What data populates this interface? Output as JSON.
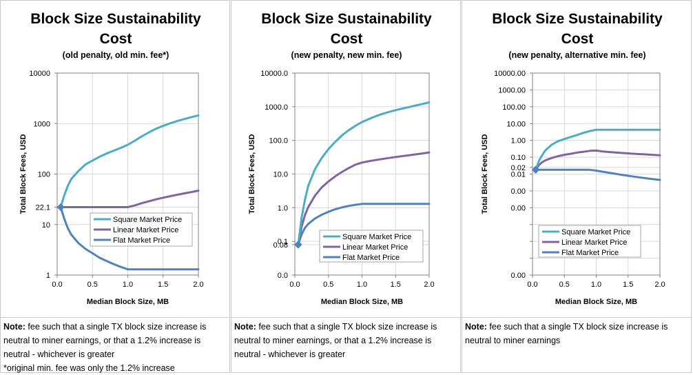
{
  "colors": {
    "square": "#4BACC6",
    "linear": "#8064A2",
    "flat": "#4F81BD",
    "grid": "#d9d9d9",
    "axis": "#808080"
  },
  "chart_data": [
    {
      "type": "line",
      "title_lines": [
        "Block Size Sustainability",
        "Cost"
      ],
      "subtitle": "(old penalty, old min. fee*)",
      "xlabel": "Median Block Size, MB",
      "ylabel": "Total Block Fees, USD",
      "yscale": "log",
      "xlim": [
        0,
        2.0
      ],
      "ylim": [
        1,
        10000
      ],
      "x_ticks": [
        "0.0",
        "0.5",
        "1.0",
        "1.5",
        "2.0"
      ],
      "y_ticks": [
        {
          "value": 10000,
          "label": "10000"
        },
        {
          "value": 1000,
          "label": "1000"
        },
        {
          "value": 100,
          "label": "100"
        },
        {
          "value": 22.1,
          "label": "22.1"
        },
        {
          "value": 10,
          "label": "10"
        },
        {
          "value": 1,
          "label": "1"
        }
      ],
      "legend_position": "lower-right",
      "start_marker": {
        "x": 0.05,
        "y": 22.1
      },
      "series": [
        {
          "name": "Square Market Price",
          "color_key": "square",
          "points": [
            [
              0.05,
              22.1
            ],
            [
              0.1,
              38
            ],
            [
              0.15,
              58
            ],
            [
              0.2,
              80
            ],
            [
              0.3,
              115
            ],
            [
              0.4,
              155
            ],
            [
              0.5,
              185
            ],
            [
              0.6,
              220
            ],
            [
              0.7,
              255
            ],
            [
              0.8,
              290
            ],
            [
              0.9,
              330
            ],
            [
              1.0,
              380
            ],
            [
              1.1,
              460
            ],
            [
              1.2,
              560
            ],
            [
              1.3,
              670
            ],
            [
              1.4,
              790
            ],
            [
              1.5,
              900
            ],
            [
              1.6,
              1010
            ],
            [
              1.7,
              1120
            ],
            [
              1.8,
              1230
            ],
            [
              1.9,
              1340
            ],
            [
              2.0,
              1450
            ]
          ]
        },
        {
          "name": "Linear Market Price",
          "color_key": "linear",
          "points": [
            [
              0.05,
              22.1
            ],
            [
              0.3,
              22.1
            ],
            [
              0.6,
              22.1
            ],
            [
              1.0,
              22.1
            ],
            [
              1.1,
              24
            ],
            [
              1.2,
              26.5
            ],
            [
              1.3,
              29
            ],
            [
              1.4,
              31.5
            ],
            [
              1.5,
              34
            ],
            [
              1.6,
              36.5
            ],
            [
              1.7,
              39
            ],
            [
              1.8,
              41.5
            ],
            [
              1.9,
              44
            ],
            [
              2.0,
              47
            ]
          ]
        },
        {
          "name": "Flat Market Price",
          "color_key": "flat",
          "points": [
            [
              0.05,
              22.1
            ],
            [
              0.1,
              13
            ],
            [
              0.15,
              8.5
            ],
            [
              0.2,
              6.3
            ],
            [
              0.3,
              4.3
            ],
            [
              0.4,
              3.3
            ],
            [
              0.5,
              2.7
            ],
            [
              0.6,
              2.2
            ],
            [
              0.7,
              1.9
            ],
            [
              0.8,
              1.65
            ],
            [
              0.9,
              1.45
            ],
            [
              1.0,
              1.3
            ],
            [
              1.1,
              1.3
            ],
            [
              1.5,
              1.3
            ],
            [
              2.0,
              1.3
            ]
          ]
        }
      ]
    },
    {
      "type": "line",
      "title_lines": [
        "Block Size Sustainability",
        "Cost"
      ],
      "subtitle": "(new penalty, new min. fee)",
      "xlabel": "Median Block Size, MB",
      "ylabel": "Total Block Fees, USD",
      "yscale": "log",
      "xlim": [
        0,
        2.0
      ],
      "ylim": [
        0.01,
        10000
      ],
      "x_ticks": [
        "0.0",
        "0.5",
        "1.0",
        "1.5",
        "2.0"
      ],
      "y_ticks": [
        {
          "value": 10000,
          "label": "10000.0"
        },
        {
          "value": 1000,
          "label": "1000.0"
        },
        {
          "value": 100,
          "label": "100.0"
        },
        {
          "value": 10,
          "label": "10.0"
        },
        {
          "value": 1,
          "label": "1.0"
        },
        {
          "value": 0.1,
          "label": "0.1"
        },
        {
          "value": 0.08,
          "label": "0.08"
        },
        {
          "value": 0.01,
          "label": "0.0"
        }
      ],
      "legend_position": "lower-right",
      "start_marker": {
        "x": 0.05,
        "y": 0.08
      },
      "series": [
        {
          "name": "Square Market Price",
          "color_key": "square",
          "points": [
            [
              0.05,
              0.08
            ],
            [
              0.1,
              0.5
            ],
            [
              0.15,
              1.7
            ],
            [
              0.2,
              4.5
            ],
            [
              0.3,
              14
            ],
            [
              0.4,
              30
            ],
            [
              0.5,
              55
            ],
            [
              0.6,
              90
            ],
            [
              0.7,
              140
            ],
            [
              0.8,
              200
            ],
            [
              0.9,
              270
            ],
            [
              1.0,
              350
            ],
            [
              1.1,
              430
            ],
            [
              1.2,
              520
            ],
            [
              1.3,
              610
            ],
            [
              1.4,
              700
            ],
            [
              1.5,
              790
            ],
            [
              1.6,
              880
            ],
            [
              1.7,
              980
            ],
            [
              1.8,
              1090
            ],
            [
              1.9,
              1210
            ],
            [
              2.0,
              1350
            ]
          ]
        },
        {
          "name": "Linear Market Price",
          "color_key": "linear",
          "points": [
            [
              0.05,
              0.08
            ],
            [
              0.1,
              0.27
            ],
            [
              0.15,
              0.6
            ],
            [
              0.2,
              1.05
            ],
            [
              0.3,
              2.3
            ],
            [
              0.4,
              4
            ],
            [
              0.5,
              6
            ],
            [
              0.6,
              8.5
            ],
            [
              0.7,
              11.5
            ],
            [
              0.8,
              15
            ],
            [
              0.9,
              19
            ],
            [
              1.0,
              22
            ],
            [
              1.1,
              24
            ],
            [
              1.2,
              26
            ],
            [
              1.3,
              28
            ],
            [
              1.4,
              30
            ],
            [
              1.5,
              32
            ],
            [
              1.6,
              34
            ],
            [
              1.7,
              36
            ],
            [
              1.8,
              38.5
            ],
            [
              1.9,
              41
            ],
            [
              2.0,
              44
            ]
          ]
        },
        {
          "name": "Flat Market Price",
          "color_key": "flat",
          "points": [
            [
              0.05,
              0.08
            ],
            [
              0.1,
              0.16
            ],
            [
              0.15,
              0.25
            ],
            [
              0.2,
              0.33
            ],
            [
              0.3,
              0.48
            ],
            [
              0.4,
              0.62
            ],
            [
              0.5,
              0.76
            ],
            [
              0.6,
              0.9
            ],
            [
              0.7,
              1.02
            ],
            [
              0.8,
              1.13
            ],
            [
              0.9,
              1.22
            ],
            [
              1.0,
              1.3
            ],
            [
              1.1,
              1.3
            ],
            [
              1.5,
              1.3
            ],
            [
              2.0,
              1.3
            ]
          ]
        }
      ]
    },
    {
      "type": "line",
      "title_lines": [
        "Block Size Sustainability",
        "Cost"
      ],
      "subtitle": "(new penalty, alternative min. fee)",
      "xlabel": "Median Block Size, MB",
      "ylabel": "Total Block Fees, USD",
      "yscale": "log",
      "xlim": [
        0,
        2.0
      ],
      "ylim": [
        1e-08,
        10000
      ],
      "x_ticks": [
        "0.0",
        "0.5",
        "1.0",
        "1.5",
        "2.0"
      ],
      "y_ticks": [
        {
          "value": 10000,
          "label": "10000.00"
        },
        {
          "value": 1000,
          "label": "1000.00"
        },
        {
          "value": 100,
          "label": "100.00"
        },
        {
          "value": 10,
          "label": "10.00"
        },
        {
          "value": 1,
          "label": "1.00"
        },
        {
          "value": 0.1,
          "label": "0.10"
        },
        {
          "value": 0.025,
          "label": "0.02"
        },
        {
          "value": 0.01,
          "label": "0.01"
        },
        {
          "value": 0.001,
          "label": "0.00"
        },
        {
          "value": 0.0001,
          "label": "0.00"
        },
        {
          "value": 1e-05,
          "label": "0.00"
        },
        {
          "value": 1e-06,
          "label": "0.00"
        },
        {
          "value": 1e-07,
          "label": "0.00"
        },
        {
          "value": 1e-08,
          "label": "0.00"
        }
      ],
      "y_tick_labels_hidden": [
        1e-05,
        1e-06,
        1e-07
      ],
      "legend_position": "lower-right",
      "start_marker": {
        "x": 0.05,
        "y": 0.018
      },
      "series": [
        {
          "name": "Square Market Price",
          "color_key": "square",
          "points": [
            [
              0.05,
              0.018
            ],
            [
              0.1,
              0.06
            ],
            [
              0.15,
              0.13
            ],
            [
              0.2,
              0.25
            ],
            [
              0.3,
              0.55
            ],
            [
              0.4,
              0.9
            ],
            [
              0.5,
              1.2
            ],
            [
              0.6,
              1.6
            ],
            [
              0.7,
              2.1
            ],
            [
              0.8,
              2.8
            ],
            [
              0.9,
              3.6
            ],
            [
              1.0,
              4.3
            ],
            [
              1.2,
              4.3
            ],
            [
              1.5,
              4.3
            ],
            [
              2.0,
              4.3
            ]
          ]
        },
        {
          "name": "Linear Market Price",
          "color_key": "linear",
          "points": [
            [
              0.05,
              0.018
            ],
            [
              0.1,
              0.034
            ],
            [
              0.15,
              0.05
            ],
            [
              0.2,
              0.065
            ],
            [
              0.3,
              0.09
            ],
            [
              0.4,
              0.115
            ],
            [
              0.5,
              0.14
            ],
            [
              0.6,
              0.16
            ],
            [
              0.7,
              0.19
            ],
            [
              0.8,
              0.21
            ],
            [
              0.9,
              0.24
            ],
            [
              1.0,
              0.25
            ],
            [
              1.1,
              0.22
            ],
            [
              1.2,
              0.205
            ],
            [
              1.4,
              0.18
            ],
            [
              1.6,
              0.16
            ],
            [
              1.8,
              0.145
            ],
            [
              2.0,
              0.13
            ]
          ]
        },
        {
          "name": "Flat Market Price",
          "color_key": "flat",
          "points": [
            [
              0.05,
              0.018
            ],
            [
              0.2,
              0.018
            ],
            [
              0.5,
              0.018
            ],
            [
              0.9,
              0.018
            ],
            [
              1.0,
              0.016
            ],
            [
              1.2,
              0.012
            ],
            [
              1.4,
              0.009
            ],
            [
              1.6,
              0.007
            ],
            [
              1.8,
              0.0055
            ],
            [
              2.0,
              0.0045
            ]
          ]
        }
      ]
    }
  ],
  "notes": [
    {
      "label": "Note:",
      "lines": [
        "fee such that a single TX block size increase is",
        "neutral to miner earnings, or that a 1.2% increase is",
        "neutral - whichever is greater",
        "*original min. fee was only the 1.2% increase"
      ]
    },
    {
      "label": "Note:",
      "lines": [
        "fee such that a single TX block size increase is",
        "neutral to miner earnings, or that a 1.2% increase is",
        "neutral - whichever is greater"
      ]
    },
    {
      "label": "Note:",
      "lines": [
        "fee such that a single TX block size increase is",
        "neutral to miner earnings"
      ]
    }
  ]
}
